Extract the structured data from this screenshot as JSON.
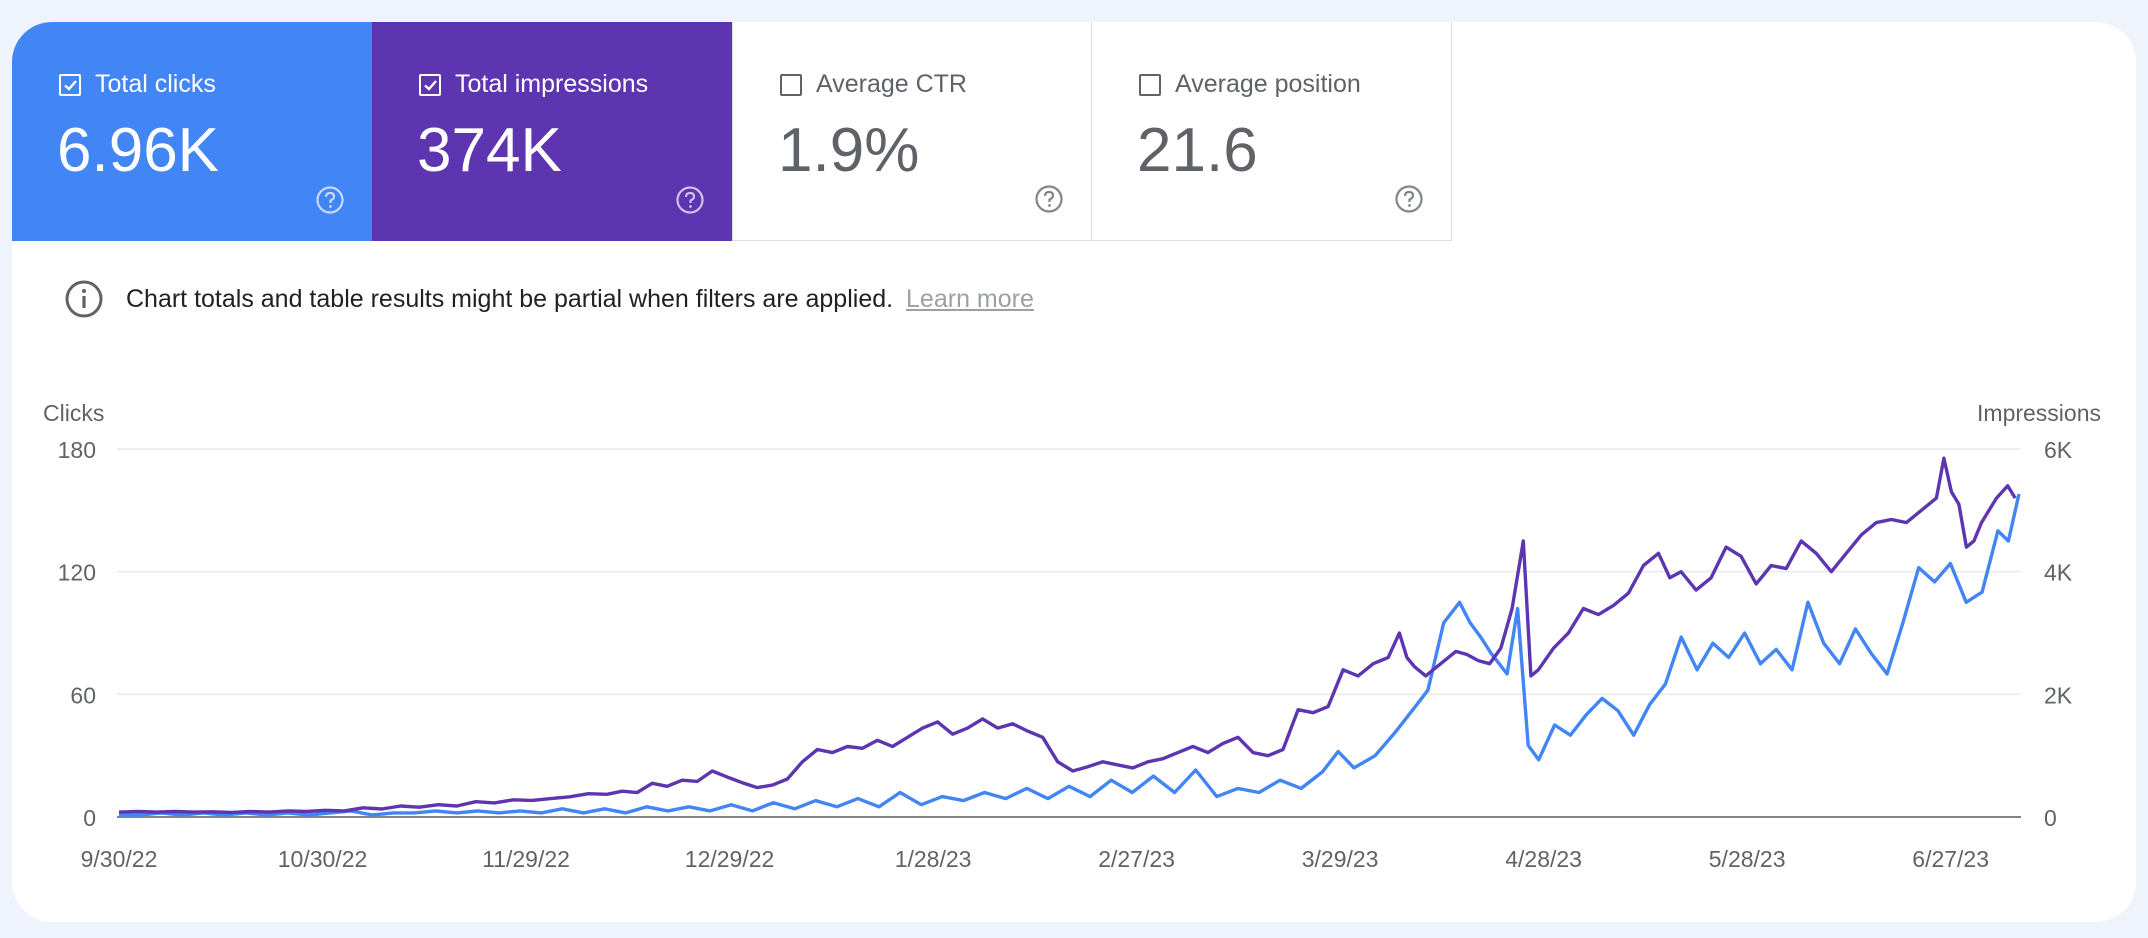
{
  "metrics": {
    "clicks": {
      "label": "Total clicks",
      "value": "6.96K",
      "checked": true,
      "color": "#4285f4"
    },
    "impressions": {
      "label": "Total impressions",
      "value": "374K",
      "checked": true,
      "color": "#5e35b1"
    },
    "ctr": {
      "label": "Average CTR",
      "value": "1.9%",
      "checked": false
    },
    "position": {
      "label": "Average position",
      "value": "21.6",
      "checked": false
    }
  },
  "notice": {
    "text": "Chart totals and table results might be partial when filters are applied.",
    "link": "Learn more"
  },
  "chart_data": {
    "type": "line",
    "left_axis": {
      "label": "Clicks",
      "ticks": [
        "0",
        "60",
        "120",
        "180"
      ],
      "range": [
        0,
        180
      ]
    },
    "right_axis": {
      "label": "Impressions",
      "ticks": [
        "0",
        "2K",
        "4K",
        "6K"
      ],
      "range": [
        0,
        6000
      ]
    },
    "x_ticks": [
      "9/30/22",
      "10/30/22",
      "11/29/22",
      "12/29/22",
      "1/28/23",
      "2/27/23",
      "3/29/23",
      "4/28/23",
      "5/28/23",
      "6/27/23"
    ],
    "grid": true,
    "series": [
      {
        "name": "Total clicks",
        "axis": "left",
        "color": "#4285f4",
        "points": [
          [
            0,
            1
          ],
          [
            4,
            1
          ],
          [
            8,
            2
          ],
          [
            12,
            1
          ],
          [
            16,
            2
          ],
          [
            20,
            1
          ],
          [
            24,
            2
          ],
          [
            28,
            1
          ],
          [
            32,
            2
          ],
          [
            36,
            1
          ],
          [
            40,
            2
          ],
          [
            44,
            3
          ],
          [
            48,
            1
          ],
          [
            52,
            2
          ],
          [
            56,
            2
          ],
          [
            60,
            3
          ],
          [
            64,
            2
          ],
          [
            68,
            3
          ],
          [
            72,
            2
          ],
          [
            76,
            3
          ],
          [
            80,
            2
          ],
          [
            84,
            4
          ],
          [
            88,
            2
          ],
          [
            92,
            4
          ],
          [
            96,
            2
          ],
          [
            100,
            5
          ],
          [
            104,
            3
          ],
          [
            108,
            5
          ],
          [
            112,
            3
          ],
          [
            116,
            6
          ],
          [
            120,
            3
          ],
          [
            124,
            7
          ],
          [
            128,
            4
          ],
          [
            132,
            8
          ],
          [
            136,
            5
          ],
          [
            140,
            9
          ],
          [
            144,
            5
          ],
          [
            148,
            12
          ],
          [
            152,
            6
          ],
          [
            156,
            10
          ],
          [
            160,
            8
          ],
          [
            164,
            12
          ],
          [
            168,
            9
          ],
          [
            172,
            14
          ],
          [
            176,
            9
          ],
          [
            180,
            15
          ],
          [
            184,
            10
          ],
          [
            188,
            18
          ],
          [
            192,
            12
          ],
          [
            196,
            20
          ],
          [
            200,
            12
          ],
          [
            204,
            23
          ],
          [
            208,
            10
          ],
          [
            212,
            14
          ],
          [
            216,
            12
          ],
          [
            220,
            18
          ],
          [
            224,
            14
          ],
          [
            228,
            22
          ],
          [
            231,
            32
          ],
          [
            234,
            24
          ],
          [
            238,
            30
          ],
          [
            242,
            42
          ],
          [
            245,
            52
          ],
          [
            248,
            62
          ],
          [
            251,
            95
          ],
          [
            254,
            105
          ],
          [
            256,
            95
          ],
          [
            258,
            88
          ],
          [
            260,
            80
          ],
          [
            263,
            70
          ],
          [
            265,
            102
          ],
          [
            267,
            35
          ],
          [
            269,
            28
          ],
          [
            272,
            45
          ],
          [
            275,
            40
          ],
          [
            278,
            50
          ],
          [
            281,
            58
          ],
          [
            284,
            52
          ],
          [
            287,
            40
          ],
          [
            290,
            55
          ],
          [
            293,
            65
          ],
          [
            296,
            88
          ],
          [
            299,
            72
          ],
          [
            302,
            85
          ],
          [
            305,
            78
          ],
          [
            308,
            90
          ],
          [
            311,
            75
          ],
          [
            314,
            82
          ],
          [
            317,
            72
          ],
          [
            320,
            105
          ],
          [
            323,
            85
          ],
          [
            326,
            75
          ],
          [
            329,
            92
          ],
          [
            332,
            80
          ],
          [
            335,
            70
          ],
          [
            338,
            95
          ],
          [
            341,
            122
          ],
          [
            344,
            115
          ],
          [
            347,
            124
          ],
          [
            350,
            105
          ],
          [
            353,
            110
          ],
          [
            356,
            140
          ],
          [
            358,
            135
          ],
          [
            360,
            158
          ]
        ]
      },
      {
        "name": "Total impressions",
        "axis": "right",
        "color": "#5e35b1",
        "points": [
          [
            0,
            80
          ],
          [
            5,
            90
          ],
          [
            10,
            80
          ],
          [
            15,
            90
          ],
          [
            20,
            80
          ],
          [
            25,
            85
          ],
          [
            30,
            75
          ],
          [
            35,
            90
          ],
          [
            40,
            80
          ],
          [
            45,
            100
          ],
          [
            50,
            90
          ],
          [
            55,
            110
          ],
          [
            60,
            100
          ],
          [
            65,
            150
          ],
          [
            70,
            130
          ],
          [
            75,
            180
          ],
          [
            80,
            160
          ],
          [
            85,
            200
          ],
          [
            90,
            180
          ],
          [
            95,
            250
          ],
          [
            100,
            230
          ],
          [
            105,
            280
          ],
          [
            110,
            270
          ],
          [
            115,
            300
          ],
          [
            120,
            330
          ],
          [
            125,
            380
          ],
          [
            130,
            370
          ],
          [
            134,
            420
          ],
          [
            138,
            400
          ],
          [
            142,
            550
          ],
          [
            146,
            500
          ],
          [
            150,
            600
          ],
          [
            154,
            580
          ],
          [
            158,
            750
          ],
          [
            162,
            650
          ],
          [
            166,
            560
          ],
          [
            170,
            480
          ],
          [
            174,
            520
          ],
          [
            178,
            620
          ],
          [
            182,
            900
          ],
          [
            186,
            1100
          ],
          [
            190,
            1050
          ],
          [
            194,
            1150
          ],
          [
            198,
            1120
          ],
          [
            202,
            1250
          ],
          [
            206,
            1150
          ],
          [
            210,
            1300
          ],
          [
            214,
            1450
          ],
          [
            218,
            1550
          ],
          [
            222,
            1350
          ],
          [
            226,
            1450
          ],
          [
            230,
            1600
          ],
          [
            234,
            1450
          ],
          [
            238,
            1520
          ],
          [
            242,
            1400
          ],
          [
            246,
            1300
          ],
          [
            250,
            900
          ],
          [
            254,
            750
          ],
          [
            258,
            820
          ],
          [
            262,
            900
          ],
          [
            266,
            850
          ],
          [
            270,
            800
          ],
          [
            274,
            900
          ],
          [
            278,
            950
          ],
          [
            282,
            1050
          ],
          [
            286,
            1150
          ],
          [
            290,
            1050
          ],
          [
            294,
            1200
          ],
          [
            298,
            1300
          ],
          [
            302,
            1050
          ],
          [
            306,
            1000
          ],
          [
            310,
            1100
          ],
          [
            314,
            1750
          ],
          [
            318,
            1700
          ],
          [
            322,
            1800
          ],
          [
            326,
            2400
          ],
          [
            330,
            2300
          ],
          [
            334,
            2500
          ],
          [
            338,
            2600
          ],
          [
            341,
            3000
          ],
          [
            343,
            2600
          ],
          [
            345,
            2450
          ],
          [
            348,
            2300
          ],
          [
            352,
            2500
          ],
          [
            356,
            2700
          ],
          [
            359,
            2650
          ],
          [
            362,
            2550
          ],
          [
            365,
            2500
          ],
          [
            368,
            2750
          ],
          [
            371,
            3400
          ],
          [
            374,
            4500
          ],
          [
            376,
            2300
          ],
          [
            378,
            2400
          ],
          [
            382,
            2750
          ],
          [
            386,
            3000
          ],
          [
            390,
            3400
          ],
          [
            394,
            3300
          ],
          [
            398,
            3450
          ],
          [
            402,
            3650
          ],
          [
            406,
            4100
          ],
          [
            410,
            4300
          ],
          [
            413,
            3900
          ],
          [
            416,
            4000
          ],
          [
            420,
            3700
          ],
          [
            424,
            3900
          ],
          [
            428,
            4400
          ],
          [
            432,
            4250
          ],
          [
            436,
            3800
          ],
          [
            440,
            4100
          ],
          [
            444,
            4050
          ],
          [
            448,
            4500
          ],
          [
            452,
            4300
          ],
          [
            456,
            4000
          ],
          [
            460,
            4300
          ],
          [
            464,
            4600
          ],
          [
            468,
            4800
          ],
          [
            472,
            4850
          ],
          [
            476,
            4800
          ],
          [
            480,
            5000
          ],
          [
            484,
            5200
          ],
          [
            486,
            5850
          ],
          [
            488,
            5300
          ],
          [
            490,
            5100
          ],
          [
            492,
            4400
          ],
          [
            494,
            4500
          ],
          [
            496,
            4800
          ],
          [
            500,
            5200
          ],
          [
            503,
            5400
          ],
          [
            505,
            5200
          ]
        ]
      }
    ]
  },
  "icons": {
    "checkbox": "checkbox-icon",
    "help": "help-icon",
    "info": "info-icon"
  }
}
